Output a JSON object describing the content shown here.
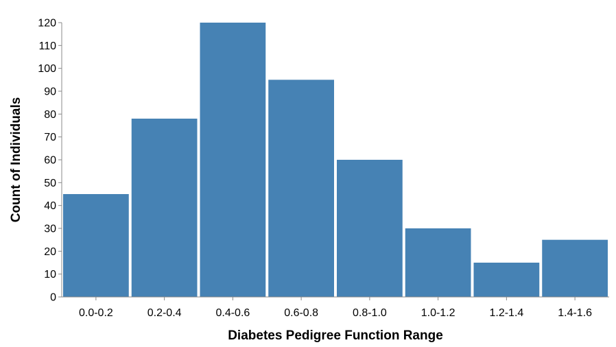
{
  "chart_data": {
    "type": "bar",
    "categories": [
      "0.0-0.2",
      "0.2-0.4",
      "0.4-0.6",
      "0.6-0.8",
      "0.8-1.0",
      "1.0-1.2",
      "1.2-1.4",
      "1.4-1.6"
    ],
    "values": [
      45,
      78,
      120,
      95,
      60,
      30,
      15,
      25
    ],
    "xlabel": "Diabetes Pedigree Function Range",
    "ylabel": "Count of Individuals",
    "ylim": [
      0,
      120
    ],
    "yticks": [
      0,
      10,
      20,
      30,
      40,
      50,
      60,
      70,
      80,
      90,
      100,
      110,
      120
    ],
    "grid": false,
    "bar_color": "#4682b4"
  }
}
